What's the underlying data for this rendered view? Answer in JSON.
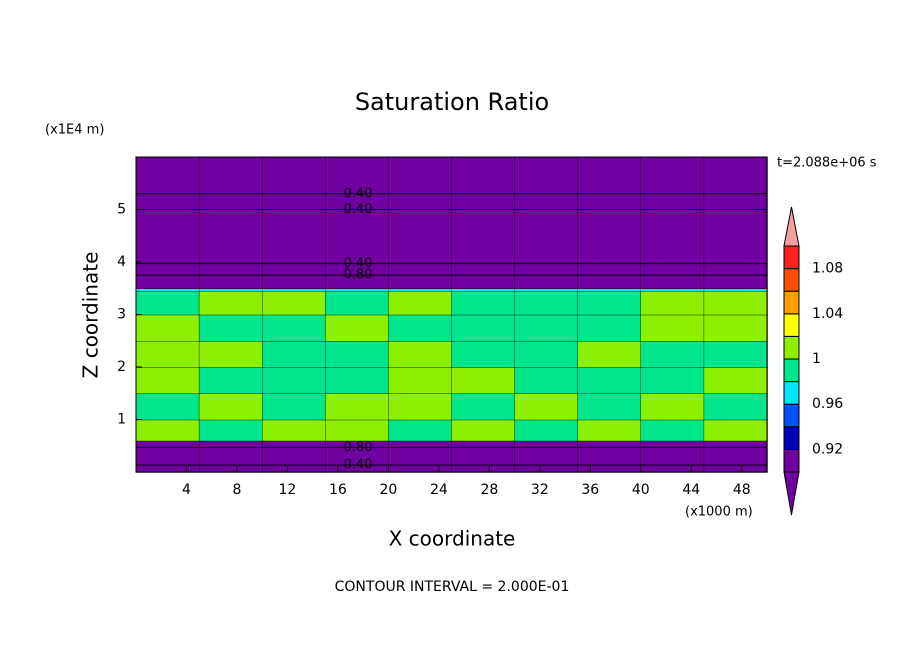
{
  "chart_data": {
    "type": "contour",
    "title": "Saturation Ratio",
    "x_label": "X coordinate",
    "y_label": "Z coordinate",
    "x_unit": "(x1000 m)",
    "y_unit": "(x1E4 m)",
    "time_label": "t=2.088e+06 s",
    "footer": "CONTOUR INTERVAL = 2.000E-01",
    "xlim": [
      0,
      50
    ],
    "ylim": [
      0,
      6
    ],
    "xticks": [
      4,
      8,
      12,
      16,
      20,
      24,
      28,
      32,
      36,
      40,
      44,
      48
    ],
    "yticks": [
      1,
      2,
      3,
      4,
      5
    ],
    "x_edges": [
      0,
      5,
      10,
      15,
      20,
      25,
      30,
      35,
      40,
      45,
      50
    ],
    "y_edges": [
      0,
      0.6,
      1,
      1.5,
      2,
      2.5,
      3,
      3.45,
      3.5,
      6
    ],
    "field": [
      [
        0.7,
        0.7,
        0.7,
        0.7,
        0.7,
        0.7,
        0.7,
        0.7,
        0.7,
        0.7
      ],
      [
        1.01,
        0.99,
        1.01,
        1.01,
        0.99,
        1.01,
        0.99,
        1.01,
        0.99,
        1.01
      ],
      [
        0.99,
        1.01,
        0.99,
        1.01,
        1.01,
        0.99,
        1.01,
        0.99,
        1.01,
        0.99
      ],
      [
        1.01,
        0.99,
        0.99,
        0.99,
        1.01,
        1.01,
        0.99,
        0.99,
        0.99,
        1.01
      ],
      [
        1.01,
        1.01,
        0.99,
        0.99,
        1.01,
        0.99,
        0.99,
        1.01,
        0.99,
        0.99
      ],
      [
        1.01,
        0.99,
        0.99,
        1.01,
        0.99,
        0.99,
        0.99,
        0.99,
        1.01,
        1.01
      ],
      [
        0.99,
        1.01,
        1.01,
        0.99,
        1.01,
        0.99,
        0.99,
        0.99,
        1.01,
        1.01
      ],
      [
        0.97,
        0.97,
        0.97,
        0.97,
        0.97,
        0.97,
        0.97,
        0.97,
        0.97,
        0.97
      ],
      [
        0.5,
        0.5,
        0.5,
        0.5,
        0.5,
        0.5,
        0.5,
        0.5,
        0.5,
        0.5
      ]
    ],
    "contour_lines": [
      {
        "z": 5.3,
        "level": 0.4,
        "label": "0.40"
      },
      {
        "z": 5.0,
        "level": 0.4,
        "label": "0.40"
      },
      {
        "z": 3.97,
        "level": 0.4,
        "label": "0.40"
      },
      {
        "z": 3.75,
        "level": 0.8,
        "label": "0.80"
      },
      {
        "z": 0.47,
        "level": 0.8,
        "label": "0.80"
      },
      {
        "z": 0.13,
        "level": 0.4,
        "label": "0.40"
      }
    ],
    "colorbar": {
      "levels": [
        0.9,
        0.92,
        0.94,
        0.96,
        0.98,
        1,
        1.02,
        1.04,
        1.06,
        1.08,
        1.1
      ],
      "colors": [
        "#7000a0",
        "#7000a0",
        "#0000b4",
        "#0050ff",
        "#00e6ff",
        "#00e68c",
        "#8cf000",
        "#ffff00",
        "#ffa000",
        "#ff5000",
        "#ff2020",
        "#f5a0a0"
      ],
      "ticks": [
        0.92,
        0.96,
        1,
        1.04,
        1.08
      ]
    }
  }
}
